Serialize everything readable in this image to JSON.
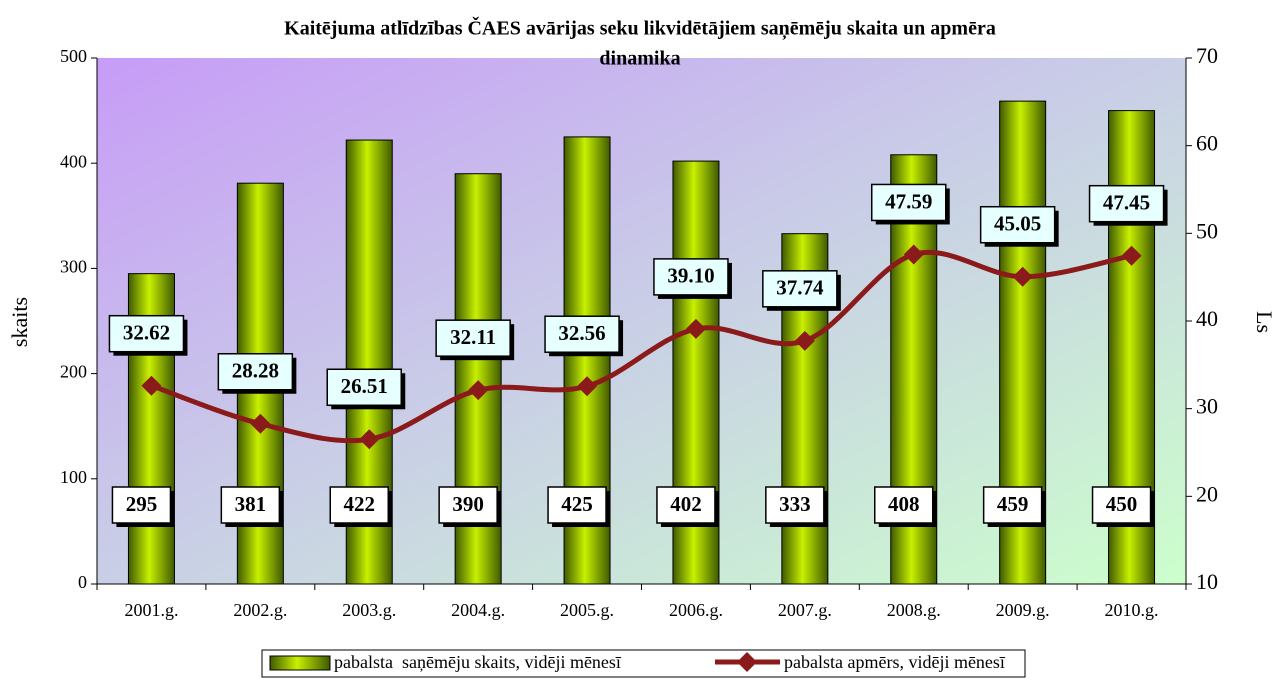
{
  "chart_data": {
    "type": "bar_line",
    "title": [
      "Kaitējuma atlīdzības ČAES avārijas seku likvidētājiem saņēmēju skaita un apmēra",
      "dinamika"
    ],
    "ylabel": "skaits",
    "y2label": "Ls",
    "categories": [
      "2001.g.",
      "2002.g.",
      "2003.g.",
      "2004.g.",
      "2005.g.",
      "2006.g.",
      "2007.g.",
      "2008.g.",
      "2009.g.",
      "2010.g."
    ],
    "series": [
      {
        "name": "pabalsta  saņēmēju skaits, vidēji mēnesī",
        "color": "#6b8e00",
        "type": "bar",
        "values": [
          295,
          381,
          422,
          390,
          425,
          402,
          333,
          408,
          459,
          450
        ]
      },
      {
        "name": "pabalsta apmērs, vidēji mēnesī",
        "color": "#8b1a1a",
        "type": "line",
        "axis": "y2",
        "values": [
          32.62,
          28.28,
          26.51,
          32.11,
          32.56,
          39.1,
          37.74,
          47.59,
          45.05,
          47.45
        ],
        "value_labels": [
          "32.62",
          "28.28",
          "26.51",
          "32.11",
          "32.56",
          "39.10",
          "37.74",
          "47.59",
          "45.05",
          "47.45"
        ]
      }
    ],
    "ylim": [
      0,
      500
    ],
    "yticks": [
      0,
      100,
      200,
      300,
      400,
      500
    ],
    "y2lim": [
      10,
      70
    ],
    "y2ticks": [
      10,
      20,
      30,
      40,
      50,
      60,
      70
    ]
  }
}
